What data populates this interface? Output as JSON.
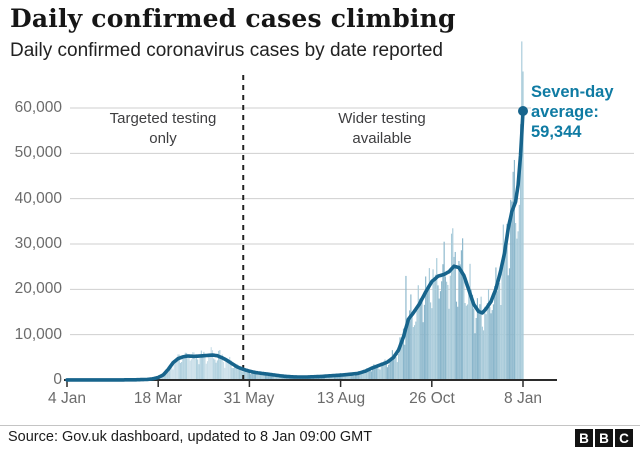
{
  "header": {
    "title": "Daily confirmed cases climbing",
    "subtitle": "Daily confirmed coronavirus cases by date reported"
  },
  "colors": {
    "bar_light_early": "#c9dee8",
    "bar_dark_early": "#b0d0de",
    "bar_light": "#a7cad9",
    "bar_dark": "#8ab6cb",
    "line": "#17648c",
    "accent_text": "#0f7ba3",
    "grid": "#cfcfcf",
    "axis": "#2b2b2b",
    "divider": "#222222"
  },
  "chart_data": {
    "type": "bar",
    "title": "Daily confirmed cases climbing",
    "xlabel": "date reported",
    "ylabel": "daily confirmed cases",
    "ylim": [
      0,
      60000
    ],
    "grid": "horizontal",
    "y_ticks": [
      0,
      10000,
      20000,
      30000,
      40000,
      50000,
      60000
    ],
    "y_tick_labels": [
      "60,000",
      "50,000",
      "40,000",
      "30,000",
      "20,000",
      "10,000",
      "0"
    ],
    "x_tick_days": [
      0,
      74,
      148,
      222,
      296,
      370
    ],
    "x_tick_labels": [
      "4 Jan",
      "18 Mar",
      "31 May",
      "13 Aug",
      "26 Oct",
      "8 Jan"
    ],
    "x_domain_days": [
      0,
      370
    ],
    "divider_day": 143,
    "era_switch_day": 140,
    "annotations": {
      "left": "Targeted testing\nonly",
      "right": "Wider testing\navailable",
      "seven_day": "Seven-day\naverage:\n59,344"
    },
    "seven_day_average": {
      "final": 59344,
      "anchors": [
        [
          0,
          15
        ],
        [
          30,
          20
        ],
        [
          55,
          40
        ],
        [
          65,
          120
        ],
        [
          70,
          280
        ],
        [
          74,
          560
        ],
        [
          78,
          1100
        ],
        [
          82,
          2300
        ],
        [
          86,
          3800
        ],
        [
          90,
          4700
        ],
        [
          94,
          5100
        ],
        [
          98,
          5300
        ],
        [
          103,
          5200
        ],
        [
          108,
          5300
        ],
        [
          113,
          5400
        ],
        [
          118,
          5500
        ],
        [
          122,
          5350
        ],
        [
          126,
          4900
        ],
        [
          130,
          4300
        ],
        [
          134,
          3600
        ],
        [
          138,
          2900
        ],
        [
          143,
          2350
        ],
        [
          148,
          1950
        ],
        [
          154,
          1600
        ],
        [
          160,
          1400
        ],
        [
          167,
          1150
        ],
        [
          174,
          900
        ],
        [
          181,
          720
        ],
        [
          188,
          660
        ],
        [
          195,
          670
        ],
        [
          202,
          730
        ],
        [
          209,
          830
        ],
        [
          216,
          980
        ],
        [
          222,
          1080
        ],
        [
          229,
          1250
        ],
        [
          236,
          1450
        ],
        [
          242,
          1950
        ],
        [
          248,
          2700
        ],
        [
          254,
          3300
        ],
        [
          260,
          3950
        ],
        [
          265,
          5000
        ],
        [
          269,
          6600
        ],
        [
          273,
          9500
        ],
        [
          277,
          13400
        ],
        [
          281,
          14800
        ],
        [
          286,
          16800
        ],
        [
          291,
          19400
        ],
        [
          296,
          21700
        ],
        [
          301,
          22900
        ],
        [
          306,
          23300
        ],
        [
          310,
          23900
        ],
        [
          314,
          25100
        ],
        [
          318,
          24800
        ],
        [
          322,
          23100
        ],
        [
          326,
          19900
        ],
        [
          330,
          16700
        ],
        [
          334,
          15100
        ],
        [
          337,
          14800
        ],
        [
          340,
          15700
        ],
        [
          344,
          17300
        ],
        [
          348,
          20100
        ],
        [
          352,
          24200
        ],
        [
          355,
          28000
        ],
        [
          358,
          33400
        ],
        [
          361,
          37200
        ],
        [
          364,
          39300
        ],
        [
          366,
          43000
        ],
        [
          368,
          49500
        ],
        [
          370,
          59344
        ]
      ]
    },
    "daily_bars": {
      "weekday_factors": [
        1.04,
        0.82,
        0.72,
        0.95,
        1.1,
        1.16,
        1.12
      ],
      "wiggle_amp1": 0.13,
      "wiggle_freq1": 2.1,
      "wiggle_amp2": 0.07,
      "wiggle_freq2": 0.77,
      "outliers": {
        "275": 22961,
        "313": 33470,
        "370": 68053
      }
    }
  },
  "footer": {
    "source": "Source: Gov.uk dashboard, updated to 8 Jan 09:00 GMT",
    "logo_letters": [
      "B",
      "B",
      "C"
    ]
  }
}
